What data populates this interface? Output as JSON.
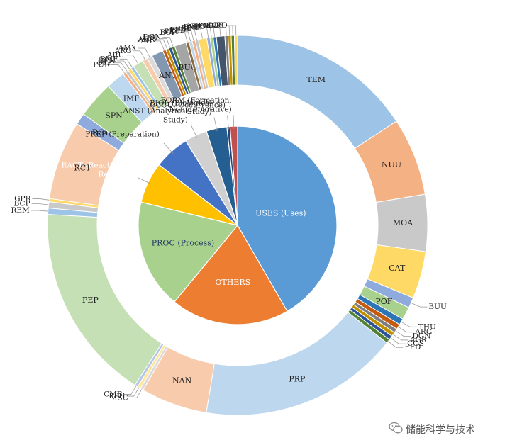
{
  "chart_data": [
    {
      "type": "pie",
      "ring": "inner",
      "slices": [
        {
          "label": "USES (Uses)",
          "value": 41.0,
          "color": "#5b9bd5",
          "label_color": "#ffffff"
        },
        {
          "label": "OTHERS",
          "value": 19.0,
          "color": "#ed7d31",
          "label_color": "#ffffff"
        },
        {
          "label": "PROC (Process)",
          "value": 17.5,
          "color": "#a9d18e",
          "label_color": "#1f3864"
        },
        {
          "label": "RACT (Reactant or Reagent)",
          "value": 6.6,
          "color": "#ffc000",
          "label_color": "#ffffff"
        },
        {
          "label": "PREP (Preparation)",
          "value": 5.7,
          "color": "#4472c4",
          "label_color": "#1f1f1f"
        },
        {
          "label": "ANST (Analytical Study)",
          "value": 3.6,
          "color": "#d0d0d0",
          "label_color": "#1f1f1f"
        },
        {
          "label": "BIOL (Biological Study)",
          "value": 3.3,
          "color": "#255e91",
          "label_color": "#1f1f1f"
        },
        {
          "label": "OCCU (Occurrence)",
          "value": 0.5,
          "color": "#264478",
          "label_color": "#1f1f1f"
        },
        {
          "label": "FORM (Formation, Nonpreparative)",
          "value": 1.2,
          "color": "#c0504d",
          "label_color": "#1f1f1f"
        }
      ]
    },
    {
      "type": "pie",
      "ring": "outer",
      "slices": [
        {
          "label": "TEM",
          "value": 17.6,
          "color": "#9dc3e6"
        },
        {
          "label": "NUU",
          "value": 7.4,
          "color": "#f4b183"
        },
        {
          "label": "MOA",
          "value": 5.4,
          "color": "#c9c9c9"
        },
        {
          "label": "CAT",
          "value": 4.5,
          "color": "#ffd966"
        },
        {
          "label": "BUU",
          "value": 1.0,
          "color": "#8faadc"
        },
        {
          "label": "POF",
          "value": 1.2,
          "color": "#a9d18e"
        },
        {
          "label": "THU",
          "value": 0.6,
          "color": "#2e75b6"
        },
        {
          "label": "ARG",
          "value": 0.5,
          "color": "#c55a11"
        },
        {
          "label": "DGN",
          "value": 0.4,
          "color": "#7f7f7f"
        },
        {
          "label": "AGR",
          "value": 0.4,
          "color": "#bf9000"
        },
        {
          "label": "COS",
          "value": 0.4,
          "color": "#2f5597"
        },
        {
          "label": "FFD",
          "value": 0.4,
          "color": "#548235"
        },
        {
          "label": "PRP",
          "value": 19.0,
          "color": "#bdd7ee"
        },
        {
          "label": "NAN",
          "value": 6.3,
          "color": "#f8cbad"
        },
        {
          "label": "MSC",
          "value": 0.3,
          "color": "#dbdbdb"
        },
        {
          "label": "PPH",
          "value": 0.3,
          "color": "#ffe699"
        },
        {
          "label": "CMB",
          "value": 0.3,
          "color": "#b4c7e7"
        },
        {
          "label": "PEP",
          "value": 18.8,
          "color": "#c5e0b4"
        },
        {
          "label": "REM",
          "value": 0.6,
          "color": "#9dc3e6"
        },
        {
          "label": "BCP",
          "value": 0.6,
          "color": "#c9c9c9"
        },
        {
          "label": "GPR",
          "value": 0.3,
          "color": "#ffd966"
        },
        {
          "label": "RCT",
          "value": 7.5,
          "color": "#f8cbad"
        },
        {
          "label": "RGT",
          "value": 1.1,
          "color": "#8faadc"
        },
        {
          "label": "SPN",
          "value": 3.5,
          "color": "#a9d18e"
        },
        {
          "label": "IMF",
          "value": 1.8,
          "color": "#bdd7ee"
        },
        {
          "label": "PUR",
          "value": 0.3,
          "color": "#f4b183"
        },
        {
          "label": "BYP",
          "value": 0.3,
          "color": "#c9c9c9"
        },
        {
          "label": "BPN",
          "value": 0.3,
          "color": "#ffd966"
        },
        {
          "label": "BMF",
          "value": 0.3,
          "color": "#9dc3e6"
        },
        {
          "label": "ARU",
          "value": 1.0,
          "color": "#c5e0b4"
        },
        {
          "label": "ARG",
          "value": 0.5,
          "color": "#f8cbad"
        },
        {
          "label": "AMX",
          "value": 0.5,
          "color": "#dbdbdb"
        },
        {
          "label": "ANT",
          "value": 1.1,
          "color": "#8497b0"
        },
        {
          "label": "PAC",
          "value": 0.3,
          "color": "#c55a11"
        },
        {
          "label": "AGR",
          "value": 0.3,
          "color": "#bf9000"
        },
        {
          "label": "ADV",
          "value": 0.3,
          "color": "#2f5597"
        },
        {
          "label": "DGN",
          "value": 0.3,
          "color": "#548235"
        },
        {
          "label": "BUU",
          "value": 1.1,
          "color": "#a5a5a5"
        },
        {
          "label": "BCP",
          "value": 0.3,
          "color": "#8c6b3f"
        },
        {
          "label": "PKT",
          "value": 0.3,
          "color": "#bdd7ee"
        },
        {
          "label": "COS",
          "value": 0.3,
          "color": "#f4b183"
        },
        {
          "label": "FFD",
          "value": 0.3,
          "color": "#c9c9c9"
        },
        {
          "label": "BSU",
          "value": 0.8,
          "color": "#ffd966"
        },
        {
          "label": "BPN",
          "value": 0.3,
          "color": "#8faadc"
        },
        {
          "label": "BMF",
          "value": 0.3,
          "color": "#a9d18e"
        },
        {
          "label": "NPO",
          "value": 0.3,
          "color": "#2e75b6"
        },
        {
          "label": "POL",
          "value": 0.8,
          "color": "#44546a"
        },
        {
          "label": "FMU",
          "value": 0.3,
          "color": "#7f7f7f"
        },
        {
          "label": "OCU",
          "value": 0.3,
          "color": "#bf9000"
        },
        {
          "label": "GOC",
          "value": 0.3,
          "color": "#548235"
        },
        {
          "label": "NPO",
          "value": 0.3,
          "color": "#ffd966"
        }
      ]
    }
  ],
  "watermark": "储能科学与技术"
}
